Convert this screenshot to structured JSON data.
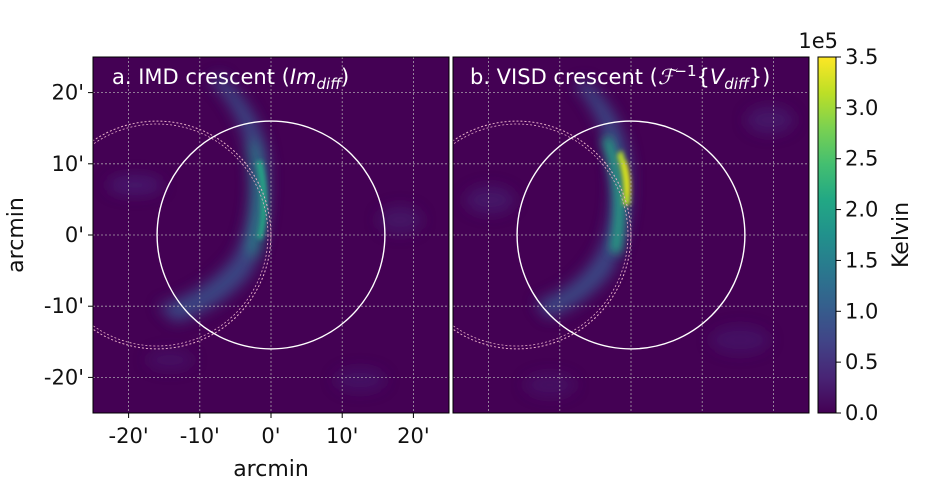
{
  "chart_data": {
    "type": "heatmap",
    "units": "arcmin",
    "xlabel": "arcmin",
    "ylabel": "arcmin",
    "xlim": [
      -25,
      25
    ],
    "ylim": [
      -25,
      25
    ],
    "ticks": [
      -20,
      -10,
      0,
      10,
      20
    ],
    "tick_labels": [
      "-20'",
      "-10'",
      "0'",
      "10'",
      "20'"
    ],
    "grid": true,
    "panels": [
      {
        "title": "a. IMD crescent (",
        "title_math": "Im",
        "title_sub": "diff",
        "title_end": ")",
        "crescent_peak_kelvin": 190000
      },
      {
        "title": "b. VISD crescent (",
        "title_math": "ℱ",
        "title_sup": "−1",
        "title_mid": "{",
        "title_v": "V",
        "title_sub": "diff",
        "title_end": "})",
        "crescent_peak_kelvin": 350000
      }
    ],
    "sun_disk": {
      "center": [
        0,
        0
      ],
      "radius_arcmin": 16
    },
    "moon_disk": {
      "center": [
        -16,
        0
      ],
      "radius_arcmin": 16
    },
    "colorbar": {
      "label": "Kelvin",
      "multiplier": "1e5",
      "range": [
        0,
        3.5
      ],
      "ticks": [
        0.0,
        0.5,
        1.0,
        1.5,
        2.0,
        2.5,
        3.0,
        3.5
      ],
      "tick_labels": [
        "0.0",
        "0.5",
        "1.0",
        "1.5",
        "2.0",
        "2.5",
        "3.0",
        "3.5"
      ],
      "colormap": "viridis"
    },
    "colors": {
      "background": "#440154",
      "circle": "#ffffff",
      "grid": "#bbbbbb"
    }
  }
}
